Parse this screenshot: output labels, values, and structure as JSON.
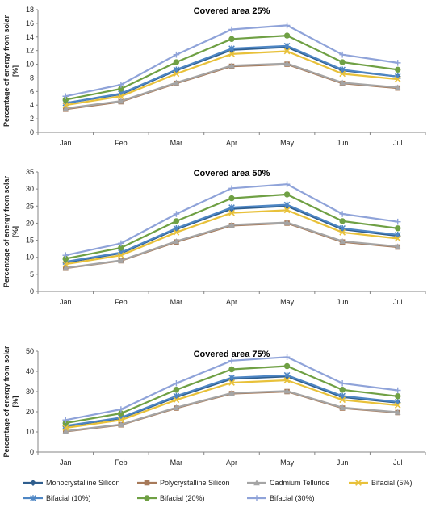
{
  "chart_data": [
    {
      "type": "line",
      "title": "Covered area 25%",
      "ylabel": "Percentage of energy from solar [%]",
      "categories": [
        "Jan",
        "Feb",
        "Mar",
        "Apr",
        "May",
        "Jun",
        "Jul"
      ],
      "ylim": [
        0,
        18
      ],
      "yticks": [
        0,
        2,
        4,
        6,
        8,
        10,
        12,
        14,
        16,
        18
      ],
      "series": [
        {
          "name": "Monocrystalline Silicon",
          "values": [
            4.3,
            5.6,
            9.1,
            12.1,
            12.5,
            9.1,
            8.2
          ]
        },
        {
          "name": "Polycrystalline Silicon",
          "values": [
            3.4,
            4.5,
            7.2,
            9.7,
            10.0,
            7.2,
            6.5
          ]
        },
        {
          "name": "Cadmium Telluride",
          "values": [
            3.5,
            4.6,
            7.3,
            9.8,
            10.1,
            7.3,
            6.6
          ]
        },
        {
          "name": "Bifacial (5%)",
          "values": [
            4.0,
            5.3,
            8.6,
            11.5,
            11.9,
            8.6,
            7.8
          ]
        },
        {
          "name": "Bifacial (10%)",
          "values": [
            4.3,
            5.7,
            9.2,
            12.3,
            12.7,
            9.2,
            8.2
          ]
        },
        {
          "name": "Bifacial (20%)",
          "values": [
            4.8,
            6.4,
            10.3,
            13.7,
            14.2,
            10.3,
            9.2
          ]
        },
        {
          "name": "Bifacial (30%)",
          "values": [
            5.3,
            7.0,
            11.4,
            15.1,
            15.7,
            11.4,
            10.2
          ]
        }
      ]
    },
    {
      "type": "line",
      "title": "Covered area 50%",
      "ylabel": "Percentage of energy from solar [%]",
      "categories": [
        "Jan",
        "Feb",
        "Mar",
        "Apr",
        "May",
        "Jun",
        "Jul"
      ],
      "ylim": [
        0,
        35
      ],
      "yticks": [
        0,
        5,
        10,
        15,
        20,
        25,
        30,
        35
      ],
      "series": [
        {
          "name": "Monocrystalline Silicon",
          "values": [
            8.5,
            11.2,
            18.2,
            24.2,
            25.0,
            18.2,
            16.3
          ]
        },
        {
          "name": "Polycrystalline Silicon",
          "values": [
            6.8,
            9.0,
            14.5,
            19.3,
            20.0,
            14.5,
            13.0
          ]
        },
        {
          "name": "Cadmium Telluride",
          "values": [
            6.9,
            9.1,
            14.7,
            19.5,
            20.2,
            14.7,
            13.2
          ]
        },
        {
          "name": "Bifacial (5%)",
          "values": [
            8.0,
            10.6,
            17.3,
            23.0,
            23.8,
            17.3,
            15.5
          ]
        },
        {
          "name": "Bifacial (10%)",
          "values": [
            8.7,
            11.4,
            18.5,
            24.6,
            25.4,
            18.5,
            16.6
          ]
        },
        {
          "name": "Bifacial (20%)",
          "values": [
            9.6,
            12.8,
            20.6,
            27.3,
            28.4,
            20.6,
            18.5
          ]
        },
        {
          "name": "Bifacial (30%)",
          "values": [
            10.6,
            14.1,
            22.7,
            30.2,
            31.4,
            22.7,
            20.4
          ]
        }
      ]
    },
    {
      "type": "line",
      "title": "Covered area 75%",
      "ylabel": "Percentage of energy from solar [%]",
      "categories": [
        "Jan",
        "Feb",
        "Mar",
        "Apr",
        "May",
        "Jun",
        "Jul"
      ],
      "ylim": [
        0,
        50
      ],
      "yticks": [
        0,
        10,
        20,
        30,
        40,
        50
      ],
      "series": [
        {
          "name": "Monocrystalline Silicon",
          "values": [
            12.8,
            16.8,
            27.3,
            36.3,
            37.5,
            27.3,
            24.5
          ]
        },
        {
          "name": "Polycrystalline Silicon",
          "values": [
            10.2,
            13.5,
            21.8,
            29.0,
            30.0,
            21.8,
            19.6
          ]
        },
        {
          "name": "Cadmium Telluride",
          "values": [
            10.4,
            13.7,
            22.1,
            29.3,
            30.3,
            22.1,
            19.8
          ]
        },
        {
          "name": "Bifacial (5%)",
          "values": [
            12.0,
            15.9,
            25.9,
            34.4,
            35.6,
            25.9,
            23.2
          ]
        },
        {
          "name": "Bifacial (10%)",
          "values": [
            13.0,
            17.1,
            27.8,
            36.9,
            38.1,
            27.8,
            24.9
          ]
        },
        {
          "name": "Bifacial (20%)",
          "values": [
            14.4,
            19.2,
            30.9,
            41.0,
            42.6,
            30.9,
            27.7
          ]
        },
        {
          "name": "Bifacial (30%)",
          "values": [
            15.9,
            21.2,
            34.1,
            45.3,
            47.1,
            34.1,
            30.6
          ]
        }
      ]
    }
  ],
  "legend": {
    "position": "bottom",
    "items": [
      {
        "label": "Monocrystalline Silicon",
        "color": "#2F5E8E",
        "marker": "diamond"
      },
      {
        "label": "Polycrystalline Silicon",
        "color": "#A77A5A",
        "marker": "square"
      },
      {
        "label": "Cadmium Telluride",
        "color": "#A5A5A5",
        "marker": "triangle"
      },
      {
        "label": "Bifacial (5%)",
        "color": "#E8C13A",
        "marker": "x"
      },
      {
        "label": "Bifacial (10%)",
        "color": "#4E86C4",
        "marker": "asterisk"
      },
      {
        "label": "Bifacial (20%)",
        "color": "#6FA044",
        "marker": "circle"
      },
      {
        "label": "Bifacial (30%)",
        "color": "#8FA3D9",
        "marker": "plus"
      }
    ]
  }
}
